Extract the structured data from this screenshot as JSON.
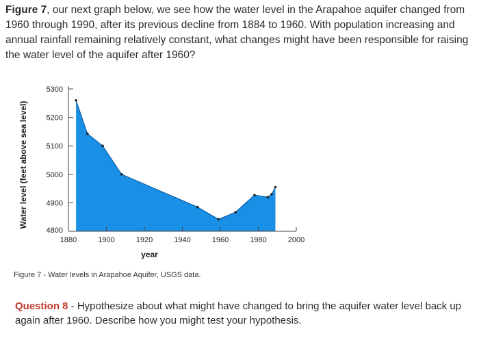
{
  "intro": {
    "figure_ref": "Figure 7",
    "text_after_ref": ", our next graph below, we see how the water level in the Arapahoe aquifer changed from 1960 through 1990, after its previous decline from 1884 to 1960. With population increasing and annual rainfall remaining relatively constant, what changes might have been responsible for raising the water level of the aquifer after 1960?"
  },
  "caption": "Figure 7 - Water levels in Arapahoe Aquifer, USGS data.",
  "question": {
    "label": "Question 8",
    "text": " - Hypothesize about what might have changed to bring the aquifer water level back up again after 1960. Describe how you might test your hypothesis."
  },
  "colors": {
    "fill": "#1a8fe6",
    "axis": "#444444",
    "point": "#222222"
  },
  "chart_data": {
    "type": "area",
    "xlabel": "year",
    "ylabel": "Water level (feet above sea level)",
    "xlim": [
      1880,
      2000
    ],
    "ylim": [
      4800,
      5300
    ],
    "x_ticks": [
      1880,
      1900,
      1920,
      1940,
      1960,
      1980,
      2000
    ],
    "y_ticks": [
      4800,
      4900,
      5000,
      5100,
      5200,
      5300
    ],
    "points": [
      {
        "x": 1884,
        "y": 5260
      },
      {
        "x": 1890,
        "y": 5143
      },
      {
        "x": 1898,
        "y": 5100
      },
      {
        "x": 1908,
        "y": 5000
      },
      {
        "x": 1948,
        "y": 4885
      },
      {
        "x": 1959,
        "y": 4842
      },
      {
        "x": 1968,
        "y": 4867
      },
      {
        "x": 1978,
        "y": 4927
      },
      {
        "x": 1985,
        "y": 4920
      },
      {
        "x": 1987,
        "y": 4930
      },
      {
        "x": 1989,
        "y": 4955
      }
    ]
  }
}
